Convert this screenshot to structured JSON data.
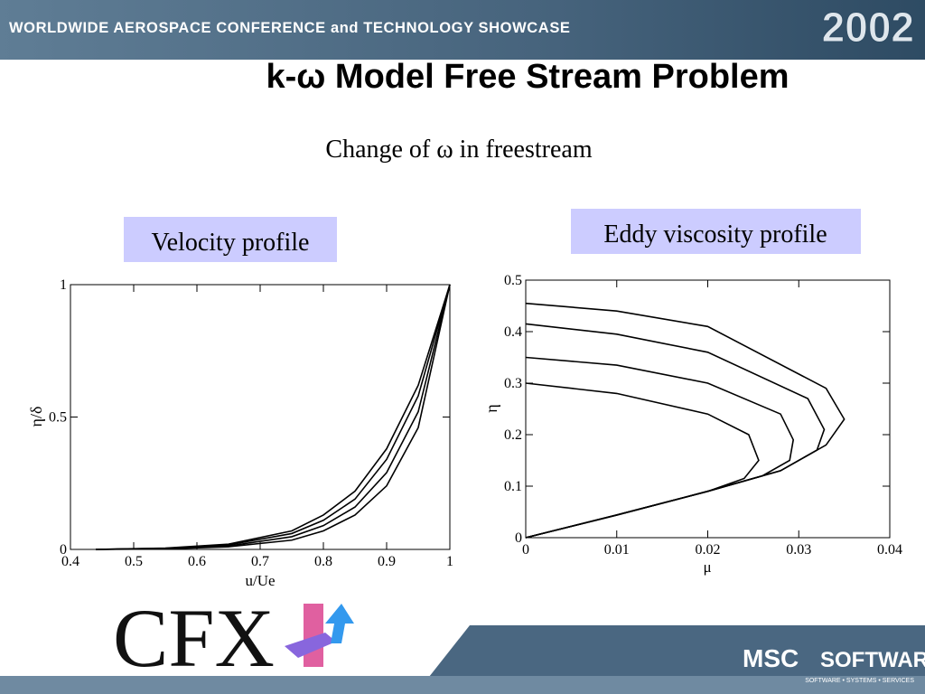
{
  "slide": {
    "banner": "WORLDWIDE AEROSPACE CONFERENCE and TECHNOLOGY SHOWCASE",
    "year": "2002",
    "title": "k-ω Model Free Stream Problem",
    "subtitle": "Change of ω in freestream",
    "logo_left": "CFX",
    "logo_right": "MSC",
    "logo_right_2": "SOFTWARE",
    "logo_right_tagline": "SOFTWARE • SYSTEMS • SERVICES"
  },
  "chart_data": [
    {
      "type": "line",
      "title": "Velocity profile",
      "xlabel": "u/Ue",
      "ylabel": "η/δ",
      "xlim": [
        0.4,
        1
      ],
      "xticks": [
        0.4,
        0.5,
        0.6,
        0.7,
        0.8,
        0.9,
        1
      ],
      "ylim": [
        0,
        1
      ],
      "yticks": [
        0,
        0.5,
        1
      ],
      "grid": false,
      "series": [
        {
          "color": "#000000",
          "x": [
            0.44,
            0.55,
            0.65,
            0.75,
            0.8,
            0.85,
            0.9,
            0.95,
            1
          ],
          "values": [
            0,
            0.005,
            0.02,
            0.07,
            0.13,
            0.22,
            0.38,
            0.62,
            1
          ]
        },
        {
          "color": "#000000",
          "x": [
            0.44,
            0.55,
            0.65,
            0.75,
            0.8,
            0.85,
            0.9,
            0.95,
            1
          ],
          "values": [
            0,
            0.004,
            0.017,
            0.06,
            0.11,
            0.19,
            0.34,
            0.58,
            1
          ]
        },
        {
          "color": "#000000",
          "x": [
            0.44,
            0.55,
            0.65,
            0.75,
            0.8,
            0.85,
            0.9,
            0.95,
            1
          ],
          "values": [
            0,
            0.003,
            0.013,
            0.048,
            0.09,
            0.16,
            0.29,
            0.52,
            1
          ]
        },
        {
          "color": "#000000",
          "x": [
            0.44,
            0.55,
            0.65,
            0.75,
            0.8,
            0.85,
            0.9,
            0.95,
            1
          ],
          "values": [
            0,
            0.002,
            0.01,
            0.035,
            0.07,
            0.13,
            0.24,
            0.46,
            1
          ]
        }
      ]
    },
    {
      "type": "line",
      "title": "Eddy viscosity profile",
      "xlabel": "μ",
      "ylabel": "η",
      "xlim": [
        0,
        0.04
      ],
      "xticks": [
        0,
        0.01,
        0.02,
        0.03,
        0.04
      ],
      "ylim": [
        0,
        0.5
      ],
      "yticks": [
        0,
        0.1,
        0.2,
        0.3,
        0.4,
        0.5
      ],
      "grid": false,
      "series": [
        {
          "color": "#000000",
          "x": [
            0,
            0.01,
            0.02,
            0.024,
            0.0256,
            0.0245,
            0.02,
            0.01,
            0
          ],
          "values": [
            0,
            0.044,
            0.09,
            0.115,
            0.15,
            0.2,
            0.24,
            0.28,
            0.3
          ]
        },
        {
          "color": "#000000",
          "x": [
            0,
            0.01,
            0.02,
            0.026,
            0.029,
            0.0294,
            0.028,
            0.02,
            0.01,
            0
          ],
          "values": [
            0,
            0.044,
            0.09,
            0.12,
            0.15,
            0.19,
            0.24,
            0.3,
            0.335,
            0.35
          ]
        },
        {
          "color": "#000000",
          "x": [
            0,
            0.01,
            0.02,
            0.028,
            0.032,
            0.0328,
            0.031,
            0.02,
            0.01,
            0
          ],
          "values": [
            0,
            0.044,
            0.09,
            0.13,
            0.17,
            0.21,
            0.27,
            0.36,
            0.395,
            0.415
          ]
        },
        {
          "color": "#000000",
          "x": [
            0,
            0.01,
            0.02,
            0.028,
            0.033,
            0.035,
            0.033,
            0.02,
            0.01,
            0
          ],
          "values": [
            0,
            0.044,
            0.09,
            0.13,
            0.18,
            0.23,
            0.29,
            0.41,
            0.44,
            0.455
          ]
        }
      ]
    }
  ]
}
